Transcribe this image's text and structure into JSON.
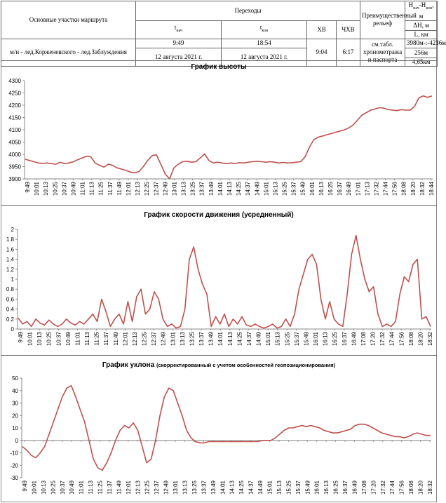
{
  "header": {
    "col1_title": "Основные участки маршрута",
    "route": "м/н - лед.Корженевского - лед.Заблуждения",
    "transitions_title": "Переходы",
    "t_start_label": "t",
    "t_start_sub": "нач",
    "t_end_label": "t",
    "t_end_sub": "кон",
    "t_start_time": "9:49",
    "t_start_date": "12 августа 2021 г.",
    "t_end_time": "18:54",
    "t_end_date": "12 августа 2021 г.",
    "hv_label": "ХВ",
    "hv_value": "9:04",
    "chv_label": "ЧХВ",
    "chv_value": "6:17",
    "relief_title": "Преимущественный рельеф",
    "relief_value": "см.табл. хронометража и паспорта",
    "h_title_h1": "H",
    "h_title_sub1": "нач",
    "h_title_sep": "-H",
    "h_title_sub2": "кон",
    "h_title_unit": ", м",
    "dh_title": "ΔH, м",
    "l_title": "L, км",
    "h_value": "3980м-:-4236м",
    "dh_value": "256м",
    "l_value": "4,65км"
  },
  "chart_data": [
    {
      "type": "line",
      "title": "График высоты",
      "ylim": [
        3900,
        4300
      ],
      "yticks": [
        3900,
        3950,
        4000,
        4050,
        4100,
        4150,
        4200,
        4250,
        4300
      ],
      "grid": false,
      "line_color": "#c0504d",
      "x_labels": [
        "9:49",
        "10:01",
        "10:13",
        "10:25",
        "10:37",
        "10:49",
        "11:01",
        "11:13",
        "11:25",
        "11:37",
        "11:49",
        "12:01",
        "12:13",
        "12:25",
        "12:37",
        "12:49",
        "13:01",
        "13:13",
        "13:25",
        "13:37",
        "13:49",
        "14:01",
        "14:13",
        "14:25",
        "14:37",
        "14:49",
        "15:01",
        "15:13",
        "15:25",
        "15:37",
        "15:49",
        "16:01",
        "16:13",
        "16:25",
        "16:37",
        "16:49",
        "17:01",
        "17:13",
        "17:32",
        "17:44",
        "17:56",
        "18:08",
        "18:20",
        "18:32",
        "18:44"
      ],
      "values": [
        3980,
        3975,
        3970,
        3965,
        3963,
        3965,
        3962,
        3960,
        3968,
        3962,
        3965,
        3970,
        3978,
        3985,
        3992,
        3990,
        3965,
        3955,
        3948,
        3960,
        3955,
        3945,
        3940,
        3935,
        3928,
        3925,
        3930,
        3950,
        3975,
        3995,
        3998,
        3960,
        3920,
        3900,
        3945,
        3960,
        3970,
        3972,
        3968,
        3970,
        3985,
        4002,
        3975,
        3965,
        3968,
        3965,
        3962,
        3965,
        3963,
        3966,
        3965,
        3968,
        3970,
        3972,
        3970,
        3968,
        3970,
        3968,
        3965,
        3967,
        3965,
        3966,
        3968,
        3970,
        3990,
        4030,
        4060,
        4070,
        4075,
        4080,
        4085,
        4090,
        4095,
        4100,
        4108,
        4120,
        4140,
        4160,
        4170,
        4180,
        4185,
        4190,
        4188,
        4182,
        4180,
        4178,
        4182,
        4180,
        4180,
        4195,
        4230,
        4238,
        4232,
        4238
      ]
    },
    {
      "type": "line",
      "title": "График скорости движения (усредненный)",
      "ylim": [
        0,
        2
      ],
      "yticks": [
        0,
        0.2,
        0.4,
        0.6,
        0.8,
        1,
        1.2,
        1.4,
        1.6,
        1.8,
        2
      ],
      "grid": false,
      "line_color": "#c0504d",
      "x_labels": [
        "9:49",
        "10:01",
        "10:13",
        "10:25",
        "10:37",
        "10:49",
        "11:01",
        "11:13",
        "11:25",
        "11:37",
        "11:49",
        "12:01",
        "12:13",
        "12:25",
        "12:37",
        "12:49",
        "13:01",
        "13:13",
        "13:25",
        "13:37",
        "13:49",
        "14:01",
        "14:13",
        "14:25",
        "14:37",
        "14:49",
        "15:01",
        "15:13",
        "15:25",
        "15:37",
        "15:49",
        "16:01",
        "16:13",
        "16:25",
        "16:37",
        "16:49",
        "17:08",
        "17:20",
        "17:32",
        "17:44",
        "17:56",
        "18:08",
        "18:20",
        "18:32"
      ],
      "values": [
        0.22,
        0.1,
        0.15,
        0.05,
        0.2,
        0.12,
        0.08,
        0.18,
        0.1,
        0.05,
        0.1,
        0.2,
        0.12,
        0.08,
        0.15,
        0.1,
        0.2,
        0.3,
        0.15,
        0.6,
        0.35,
        0.05,
        0.2,
        0.3,
        0.1,
        0.55,
        0.15,
        0.65,
        0.8,
        0.3,
        0.4,
        0.75,
        0.6,
        0.2,
        0.05,
        0.1,
        0.02,
        0.05,
        0.4,
        1.4,
        1.65,
        1.2,
        0.9,
        0.7,
        0.05,
        0.25,
        0.1,
        0.3,
        0.05,
        0.2,
        0.1,
        0.25,
        0.08,
        0.05,
        0.1,
        0.05,
        0.02,
        0.05,
        0.1,
        0.02,
        0.05,
        0.2,
        0.05,
        0.3,
        0.8,
        1.1,
        1.4,
        1.5,
        1.3,
        0.6,
        0.2,
        0.55,
        0.2,
        0.1,
        0.05,
        0.7,
        1.5,
        1.88,
        1.4,
        1.0,
        0.75,
        0.85,
        0.3,
        0.05,
        0.1,
        0.05,
        0.15,
        0.7,
        1.05,
        0.95,
        1.3,
        1.4,
        0.2,
        0.25,
        0.05
      ]
    },
    {
      "type": "line",
      "title": "График уклона",
      "subtitle": "(скорректированный с учетом особенностей геопозиционирования)",
      "ylim": [
        -30,
        50
      ],
      "yticks": [
        -30,
        -20,
        -10,
        0,
        10,
        20,
        30,
        40,
        50
      ],
      "grid": false,
      "line_color": "#c0504d",
      "x_labels": [
        "9:49",
        "10:01",
        "10:13",
        "10:25",
        "10:37",
        "10:49",
        "11:01",
        "11:13",
        "11:25",
        "11:37",
        "11:49",
        "12:01",
        "12:13",
        "12:25",
        "12:37",
        "12:49",
        "13:01",
        "13:13",
        "13:25",
        "13:37",
        "13:49",
        "14:01",
        "14:13",
        "14:25",
        "14:37",
        "14:49",
        "15:01",
        "15:13",
        "15:25",
        "15:37",
        "15:49",
        "16:01",
        "16:13",
        "16:25",
        "16:37",
        "16:49",
        "17:08",
        "17:20",
        "17:32",
        "17:44",
        "17:56",
        "18:08",
        "18:20",
        "18:32"
      ],
      "values": [
        -5,
        -8,
        -12,
        -14,
        -10,
        -5,
        5,
        15,
        25,
        35,
        42,
        44,
        35,
        25,
        15,
        0,
        -15,
        -22,
        -24,
        -18,
        -10,
        0,
        8,
        12,
        10,
        14,
        8,
        -5,
        -18,
        -15,
        0,
        20,
        35,
        42,
        40,
        30,
        20,
        8,
        2,
        -1,
        -2,
        -2,
        -1,
        -1,
        -1,
        -1,
        -1,
        -1,
        -1,
        -1,
        -1,
        -1,
        -1,
        -1,
        0,
        0,
        0,
        2,
        5,
        8,
        10,
        10,
        11,
        12,
        11,
        12,
        11,
        10,
        8,
        7,
        6,
        6,
        7,
        8,
        9,
        12,
        13,
        13,
        12,
        10,
        8,
        6,
        5,
        4,
        3,
        3,
        2,
        3,
        5,
        6,
        5,
        4,
        4
      ]
    }
  ]
}
